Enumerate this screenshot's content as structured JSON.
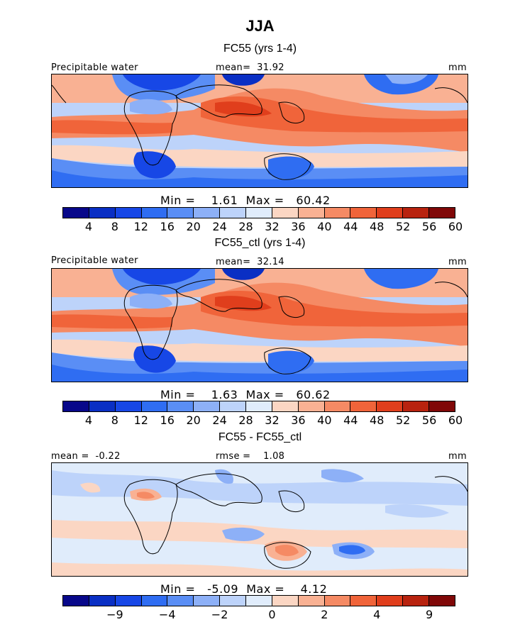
{
  "title": "JJA",
  "panels": [
    {
      "subtitle": "FC55 (yrs 1-4)",
      "left_label": "Precipitable water",
      "center_label": "mean=  31.92",
      "units": "mm",
      "stats": "Min =    1.61  Max =   60.42"
    },
    {
      "subtitle": "FC55_ctl (yrs 1-4)",
      "left_label": "Precipitable water",
      "center_label": "mean=  32.14",
      "units": "mm",
      "stats": "Min =    1.63  Max =   60.62"
    },
    {
      "subtitle": "FC55 - FC55_ctl",
      "left_label": "mean =  -0.22",
      "center_label": "rmse =    1.08",
      "units": "mm",
      "stats": "Min =   -5.09  Max =    4.12"
    }
  ],
  "colorbar_abs": {
    "colors": [
      "#08088a",
      "#0a2fc4",
      "#1747e6",
      "#2f6df2",
      "#5a8ef5",
      "#8db0f7",
      "#bdd3fa",
      "#e0ecfb",
      "#fbd6c3",
      "#f9b193",
      "#f58a64",
      "#f0643a",
      "#e03e1c",
      "#b8230f",
      "#800808"
    ],
    "ticks": [
      "4",
      "8",
      "12",
      "16",
      "20",
      "24",
      "28",
      "32",
      "36",
      "40",
      "44",
      "48",
      "52",
      "56",
      "60"
    ]
  },
  "colorbar_diff": {
    "colors": [
      "#08088a",
      "#0a2fc4",
      "#1747e6",
      "#2f6df2",
      "#5a8ef5",
      "#8db0f7",
      "#bdd3fa",
      "#e0ecfb",
      "#fbd6c3",
      "#f9b193",
      "#f58a64",
      "#f0643a",
      "#e03e1c",
      "#b8230f",
      "#800808"
    ],
    "ticks": [
      "−9",
      "−4",
      "−2",
      "0",
      "2",
      "4",
      "9"
    ]
  }
}
